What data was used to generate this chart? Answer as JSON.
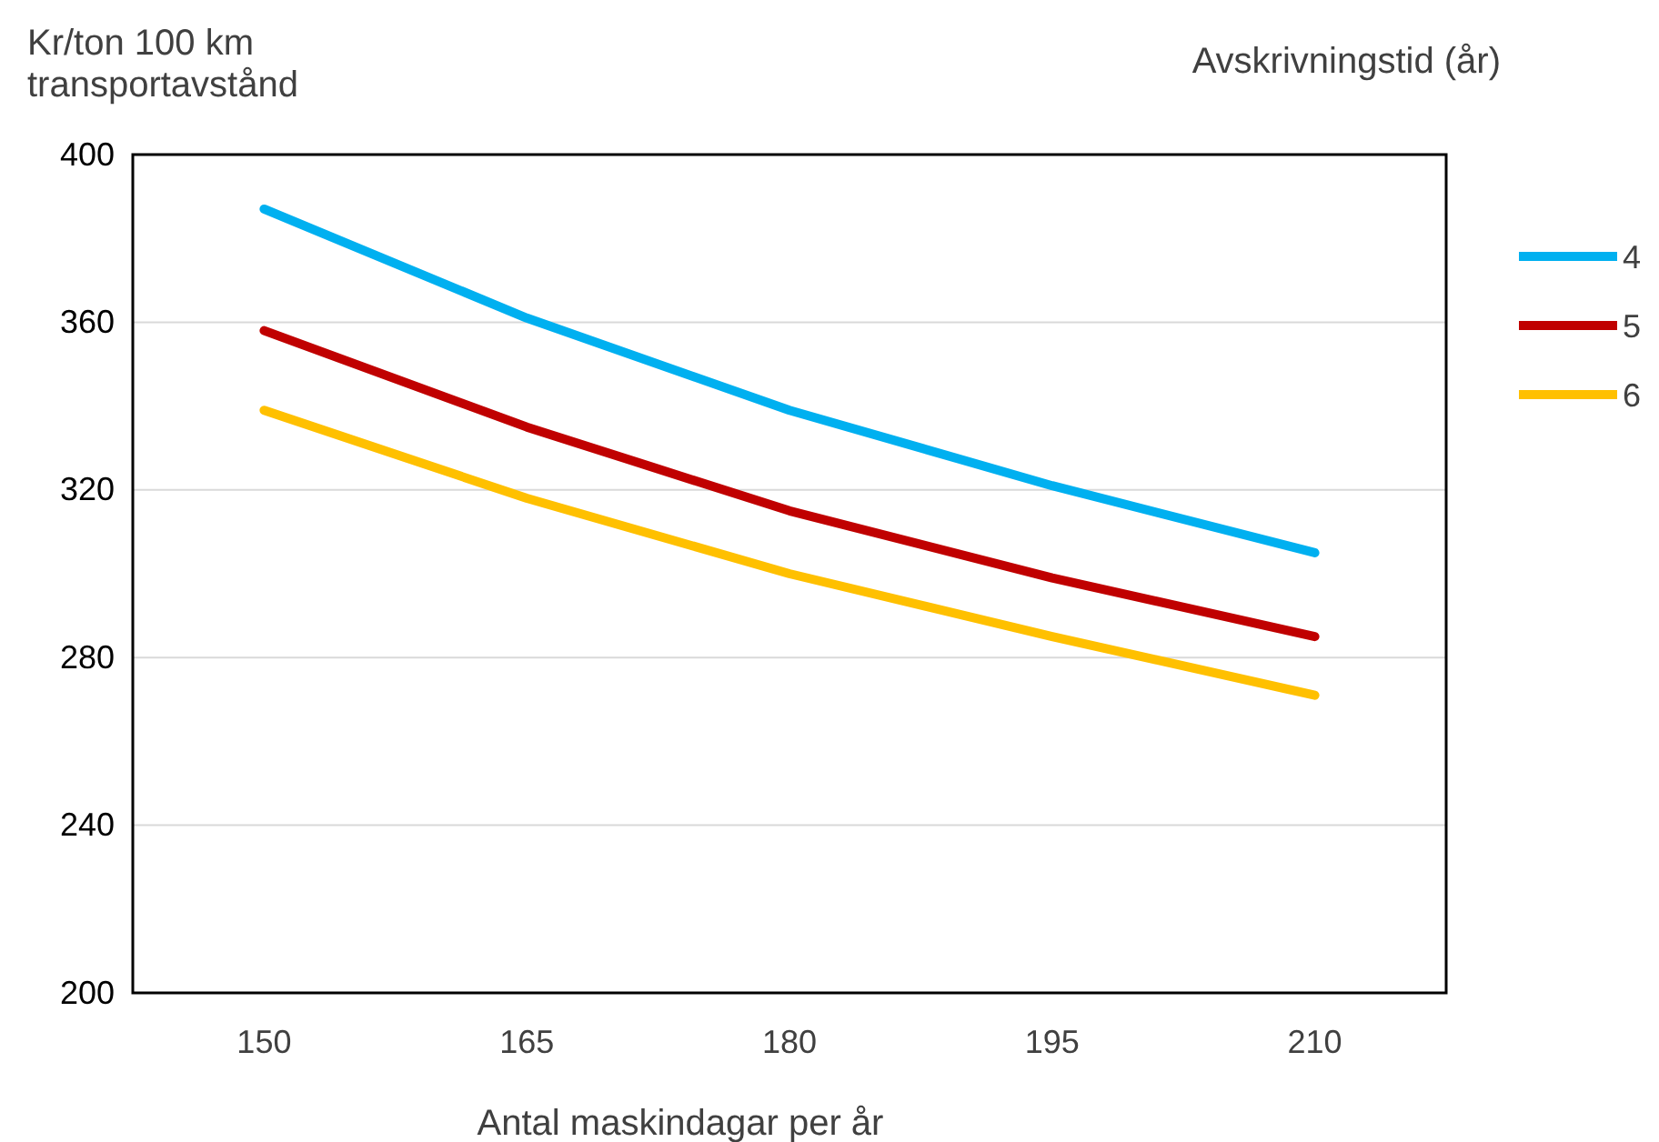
{
  "chart_data": {
    "type": "line",
    "xlabel": "Antal maskindagar per år",
    "ylabel": "Kr/ton 100 km transportavstånd",
    "legend_title": "Avskrivningstid (år)",
    "categories": [
      "150",
      "165",
      "180",
      "195",
      "210"
    ],
    "series": [
      {
        "name": "4",
        "color": "#00b0f0",
        "values": [
          387,
          361,
          339,
          321,
          305
        ]
      },
      {
        "name": "5",
        "color": "#c00000",
        "values": [
          358,
          335,
          315,
          299,
          285
        ]
      },
      {
        "name": "6",
        "color": "#ffc000",
        "values": [
          339,
          318,
          300,
          285,
          271
        ]
      }
    ],
    "ylim": [
      200,
      400
    ],
    "yticks": [
      200,
      240,
      280,
      320,
      360,
      400
    ],
    "grid": "y",
    "legend": "right",
    "marker": "none",
    "line_style": "solid"
  }
}
